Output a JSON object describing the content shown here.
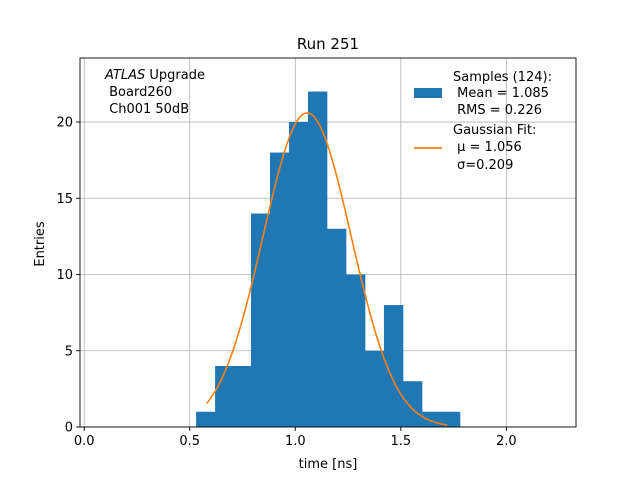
{
  "chart_data": {
    "type": "histogram",
    "title": "Run 251",
    "xlabel": "time [ns]",
    "ylabel": "Entries",
    "xlim": [
      -0.02,
      2.33
    ],
    "ylim": [
      0,
      24.2
    ],
    "xticks": [
      0.0,
      0.5,
      1.0,
      1.5,
      2.0
    ],
    "xtick_labels": [
      "0.0",
      "0.5",
      "1.0",
      "1.5",
      "2.0"
    ],
    "yticks": [
      0,
      5,
      10,
      15,
      20
    ],
    "ytick_labels": [
      "0",
      "5",
      "10",
      "15",
      "20"
    ],
    "grid": true,
    "legend_position": "top-right",
    "bar_color": "#1f77b4",
    "fit_color": "#ff7f0e",
    "annotation": {
      "italic": "ATLAS",
      "rest": " Upgrade",
      "line2": " Board260",
      "line3": " Ch001 50dB"
    },
    "histogram": {
      "name_lines": [
        "Samples (124):",
        " Mean = 1.085",
        " RMS = 0.226"
      ],
      "bin_edges": [
        0.53,
        0.62,
        0.71,
        0.79,
        0.88,
        0.97,
        1.06,
        1.15,
        1.24,
        1.33,
        1.42,
        1.51,
        1.6,
        1.69,
        1.78
      ],
      "counts": [
        1,
        4,
        4,
        14,
        18,
        20,
        22,
        13,
        10,
        5,
        8,
        3,
        1,
        1
      ]
    },
    "fit": {
      "name_lines": [
        "Gaussian Fit:",
        " μ = 1.056",
        "σ=0.209"
      ],
      "mu": 1.056,
      "sigma": 0.209,
      "amplitude": 20.6,
      "x_range": [
        0.58,
        1.72
      ]
    }
  }
}
